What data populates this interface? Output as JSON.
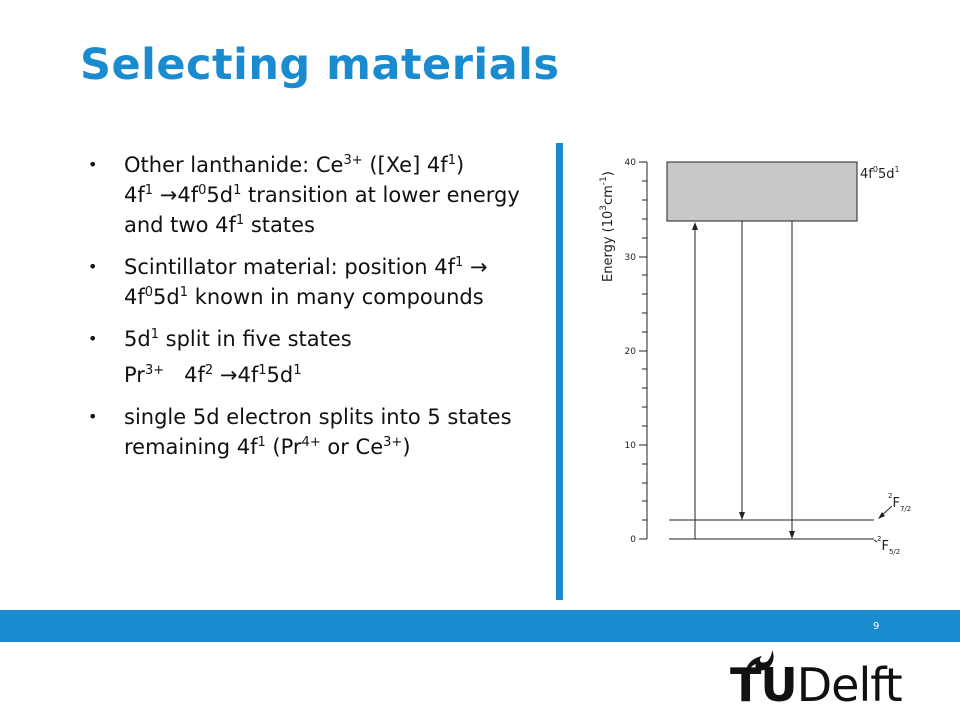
{
  "slide": {
    "title": "Selecting materials",
    "page_number": "9"
  },
  "bullets": [
    {
      "parts": [
        "Other lanthanide: Ce",
        "3+",
        " ([Xe] 4f",
        "1",
        ")"
      ],
      "line2": [
        "4f",
        "1",
        " →",
        "4f",
        "0",
        "5d",
        "1",
        " transition at lower energy and two 4f",
        "1",
        " states"
      ]
    },
    {
      "parts": [
        "Scintillator material: position 4f",
        "1",
        " → 4f",
        "0",
        "5d",
        "1",
        " known in many compounds"
      ]
    },
    {
      "parts": [
        "5d",
        "1",
        " split in five states"
      ]
    },
    {
      "parts": [
        "Pr",
        "3+",
        "   4f",
        "2",
        " →",
        "4f",
        "1",
        "5d",
        "1"
      ]
    },
    {
      "parts": [
        "single 5d electron splits into 5 states remaining 4f",
        "1",
        " (Pr",
        "4+",
        " or Ce",
        "3+",
        ")"
      ]
    }
  ],
  "diagram": {
    "ylabel": "Energy (10",
    "ylabel_sup1": "3",
    "ylabel_mid": "cm",
    "ylabel_sup2": "-1",
    "ylabel_end": ")",
    "ticks": [
      "0",
      "10",
      "20",
      "30",
      "40"
    ],
    "band_label": "4f",
    "band_label_sup": "0",
    "band_label_end": "5d",
    "band_label_sup2": "1",
    "level_upper": "F",
    "level_upper_pre": "2",
    "level_upper_sub": "7/2",
    "level_lower": "F",
    "level_lower_pre": "2",
    "level_lower_sub": "5/2",
    "band_color": "#c8c8c8"
  },
  "logo": {
    "tu": "TU",
    "delft": "Delft"
  },
  "colors": {
    "accent": "#1b8bd0"
  }
}
